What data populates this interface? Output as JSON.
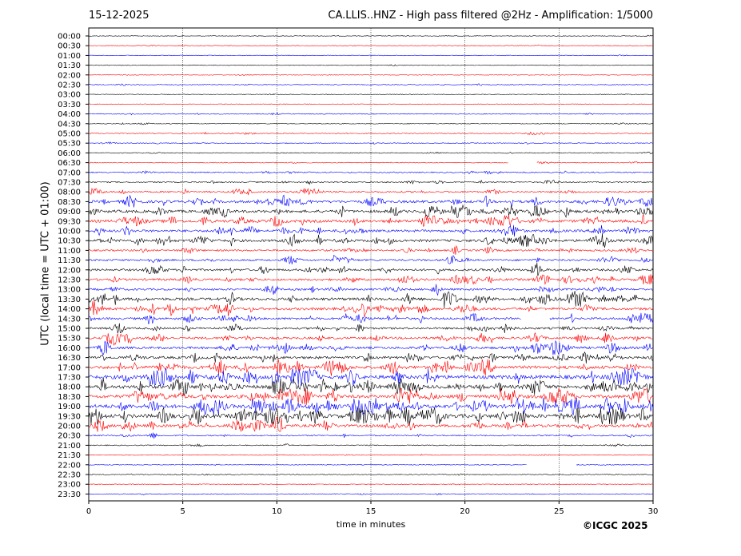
{
  "header": {
    "date": "15-12-2025",
    "title": "CA.LLIS..HNZ - High pass filtered @2Hz - Amplification: 1/5000"
  },
  "footer": {
    "copyright": "©ICGC 2025"
  },
  "chart_data": {
    "type": "line",
    "xlabel": "time in minutes",
    "ylabel": "UTC (local time = UTC + 01:00)",
    "xlim": [
      0,
      30
    ],
    "x_ticks": [
      0,
      5,
      10,
      15,
      20,
      25,
      30
    ],
    "x_tick_labels": [
      "0",
      "5",
      "10",
      "15",
      "20",
      "25",
      "30"
    ],
    "grid": "vertical dotted lines at every 5 minutes",
    "trace_labels": [
      "00:00",
      "00:30",
      "01:00",
      "01:30",
      "02:00",
      "02:30",
      "03:00",
      "03:30",
      "04:00",
      "04:30",
      "05:00",
      "05:30",
      "06:00",
      "06:30",
      "07:00",
      "07:30",
      "08:00",
      "08:30",
      "09:00",
      "09:30",
      "10:00",
      "10:30",
      "11:00",
      "11:30",
      "12:00",
      "12:30",
      "13:00",
      "13:30",
      "14:00",
      "14:30",
      "15:00",
      "15:30",
      "16:00",
      "16:30",
      "17:00",
      "17:30",
      "18:00",
      "18:30",
      "19:00",
      "19:30",
      "20:00",
      "20:30",
      "21:00",
      "21:30",
      "22:00",
      "22:30",
      "23:00",
      "23:30"
    ],
    "trace_colors": [
      "#000000",
      "#ff0000",
      "#0000ff"
    ],
    "trace_activity": [
      0.05,
      0.08,
      0.05,
      0.05,
      0.05,
      0.08,
      0.05,
      0.05,
      0.1,
      0.08,
      0.12,
      0.1,
      0.1,
      0.1,
      0.18,
      0.2,
      0.3,
      0.55,
      0.6,
      0.6,
      0.5,
      0.55,
      0.35,
      0.35,
      0.45,
      0.45,
      0.4,
      0.6,
      0.55,
      0.45,
      0.4,
      0.45,
      0.5,
      0.55,
      0.7,
      0.85,
      0.8,
      0.75,
      0.85,
      0.9,
      0.55,
      0.2,
      0.12,
      0.08,
      0.08,
      0.08,
      0.06,
      0.08
    ],
    "gaps": [
      {
        "trace": "06:30",
        "from_min": 22.3,
        "to_min": 23.8
      },
      {
        "trace": "14:30",
        "from_min": 23.0,
        "to_min": 24.5
      },
      {
        "trace": "22:00",
        "from_min": 23.3,
        "to_min": 25.9
      }
    ]
  }
}
